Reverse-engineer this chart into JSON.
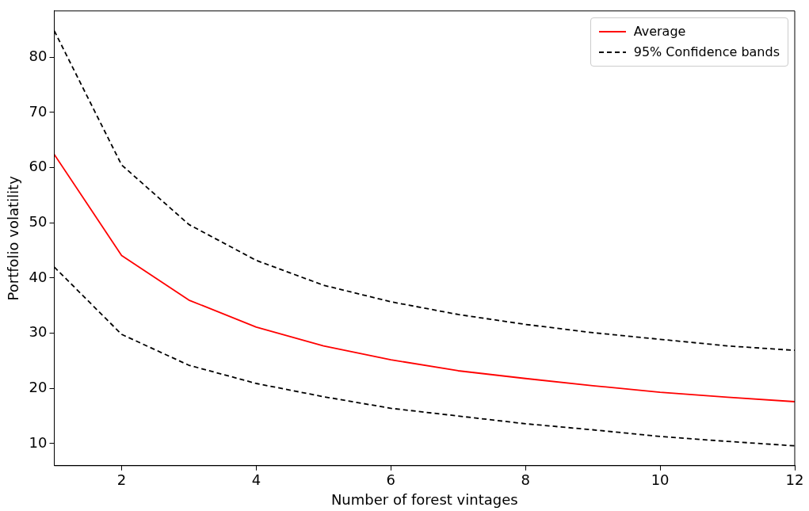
{
  "chart_data": {
    "type": "line",
    "xlabel": "Number of forest vintages",
    "ylabel": "Portfolio volatility",
    "x": [
      1,
      2,
      3,
      4,
      5,
      6,
      7,
      8,
      9,
      10,
      11,
      12
    ],
    "series": [
      {
        "name": "Average",
        "color": "#ff0000",
        "line_style": "solid",
        "values": [
          62.4,
          44.1,
          36.0,
          31.1,
          27.7,
          25.2,
          23.2,
          21.8,
          20.5,
          19.3,
          18.4,
          17.6
        ]
      },
      {
        "name": "95% Confidence bands",
        "color": "#000000",
        "line_style": "dashed",
        "values": [
          84.8,
          60.5,
          49.7,
          43.2,
          38.7,
          35.7,
          33.4,
          31.6,
          30.1,
          28.9,
          27.7,
          26.9
        ]
      },
      {
        "color": "#000000",
        "line_style": "dashed",
        "values": [
          42.0,
          29.8,
          24.2,
          20.9,
          18.5,
          16.4,
          15.0,
          13.6,
          12.5,
          11.3,
          10.4,
          9.6
        ]
      }
    ],
    "xlim": [
      1,
      12
    ],
    "xticks": [
      2,
      4,
      6,
      8,
      10,
      12
    ],
    "ylim": [
      6,
      88.4
    ],
    "yticks": [
      10,
      20,
      30,
      40,
      50,
      60,
      70,
      80
    ],
    "grid": false,
    "legend": "top right",
    "marker": "none"
  }
}
